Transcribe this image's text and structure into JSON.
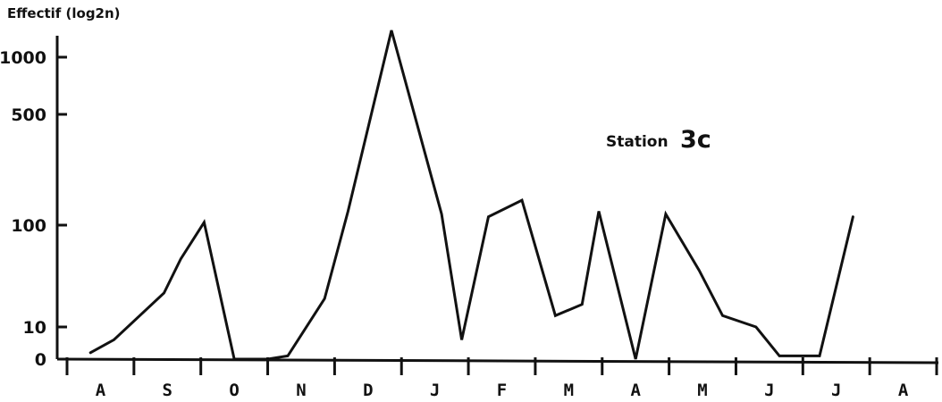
{
  "chart_data": {
    "type": "line",
    "ylabel": "Effectif (log2n)",
    "ytick_labels": [
      "0",
      "10",
      "100",
      "500",
      "1000"
    ],
    "ytick_values": [
      0,
      10,
      100,
      500,
      1000
    ],
    "categories": [
      "A",
      "S",
      "O",
      "N",
      "D",
      "J",
      "F",
      "M",
      "A",
      "M",
      "J",
      "J",
      "A"
    ],
    "annotation": {
      "text": "Station",
      "id": "3c"
    },
    "series": [
      {
        "values": [
          {
            "x": 0.35,
            "y": 2
          },
          {
            "x": 0.7,
            "y": 6
          },
          {
            "x": 1.45,
            "y": 40
          },
          {
            "x": 1.7,
            "y": 70
          },
          {
            "x": 2.05,
            "y": 110
          },
          {
            "x": 2.5,
            "y": 0
          },
          {
            "x": 3.0,
            "y": 0
          },
          {
            "x": 3.3,
            "y": 1
          },
          {
            "x": 3.85,
            "y": 35
          },
          {
            "x": 4.2,
            "y": 150
          },
          {
            "x": 4.85,
            "y": 1500
          },
          {
            "x": 5.6,
            "y": 140
          },
          {
            "x": 5.9,
            "y": 6
          },
          {
            "x": 6.3,
            "y": 130
          },
          {
            "x": 6.8,
            "y": 190
          },
          {
            "x": 7.3,
            "y": 20
          },
          {
            "x": 7.7,
            "y": 30
          },
          {
            "x": 7.95,
            "y": 150
          },
          {
            "x": 8.5,
            "y": 0
          },
          {
            "x": 8.95,
            "y": 140
          },
          {
            "x": 9.45,
            "y": 60
          },
          {
            "x": 9.8,
            "y": 20
          },
          {
            "x": 10.3,
            "y": 10
          },
          {
            "x": 10.65,
            "y": 1
          },
          {
            "x": 11.25,
            "y": 1
          },
          {
            "x": 11.75,
            "y": 130
          }
        ]
      }
    ]
  }
}
